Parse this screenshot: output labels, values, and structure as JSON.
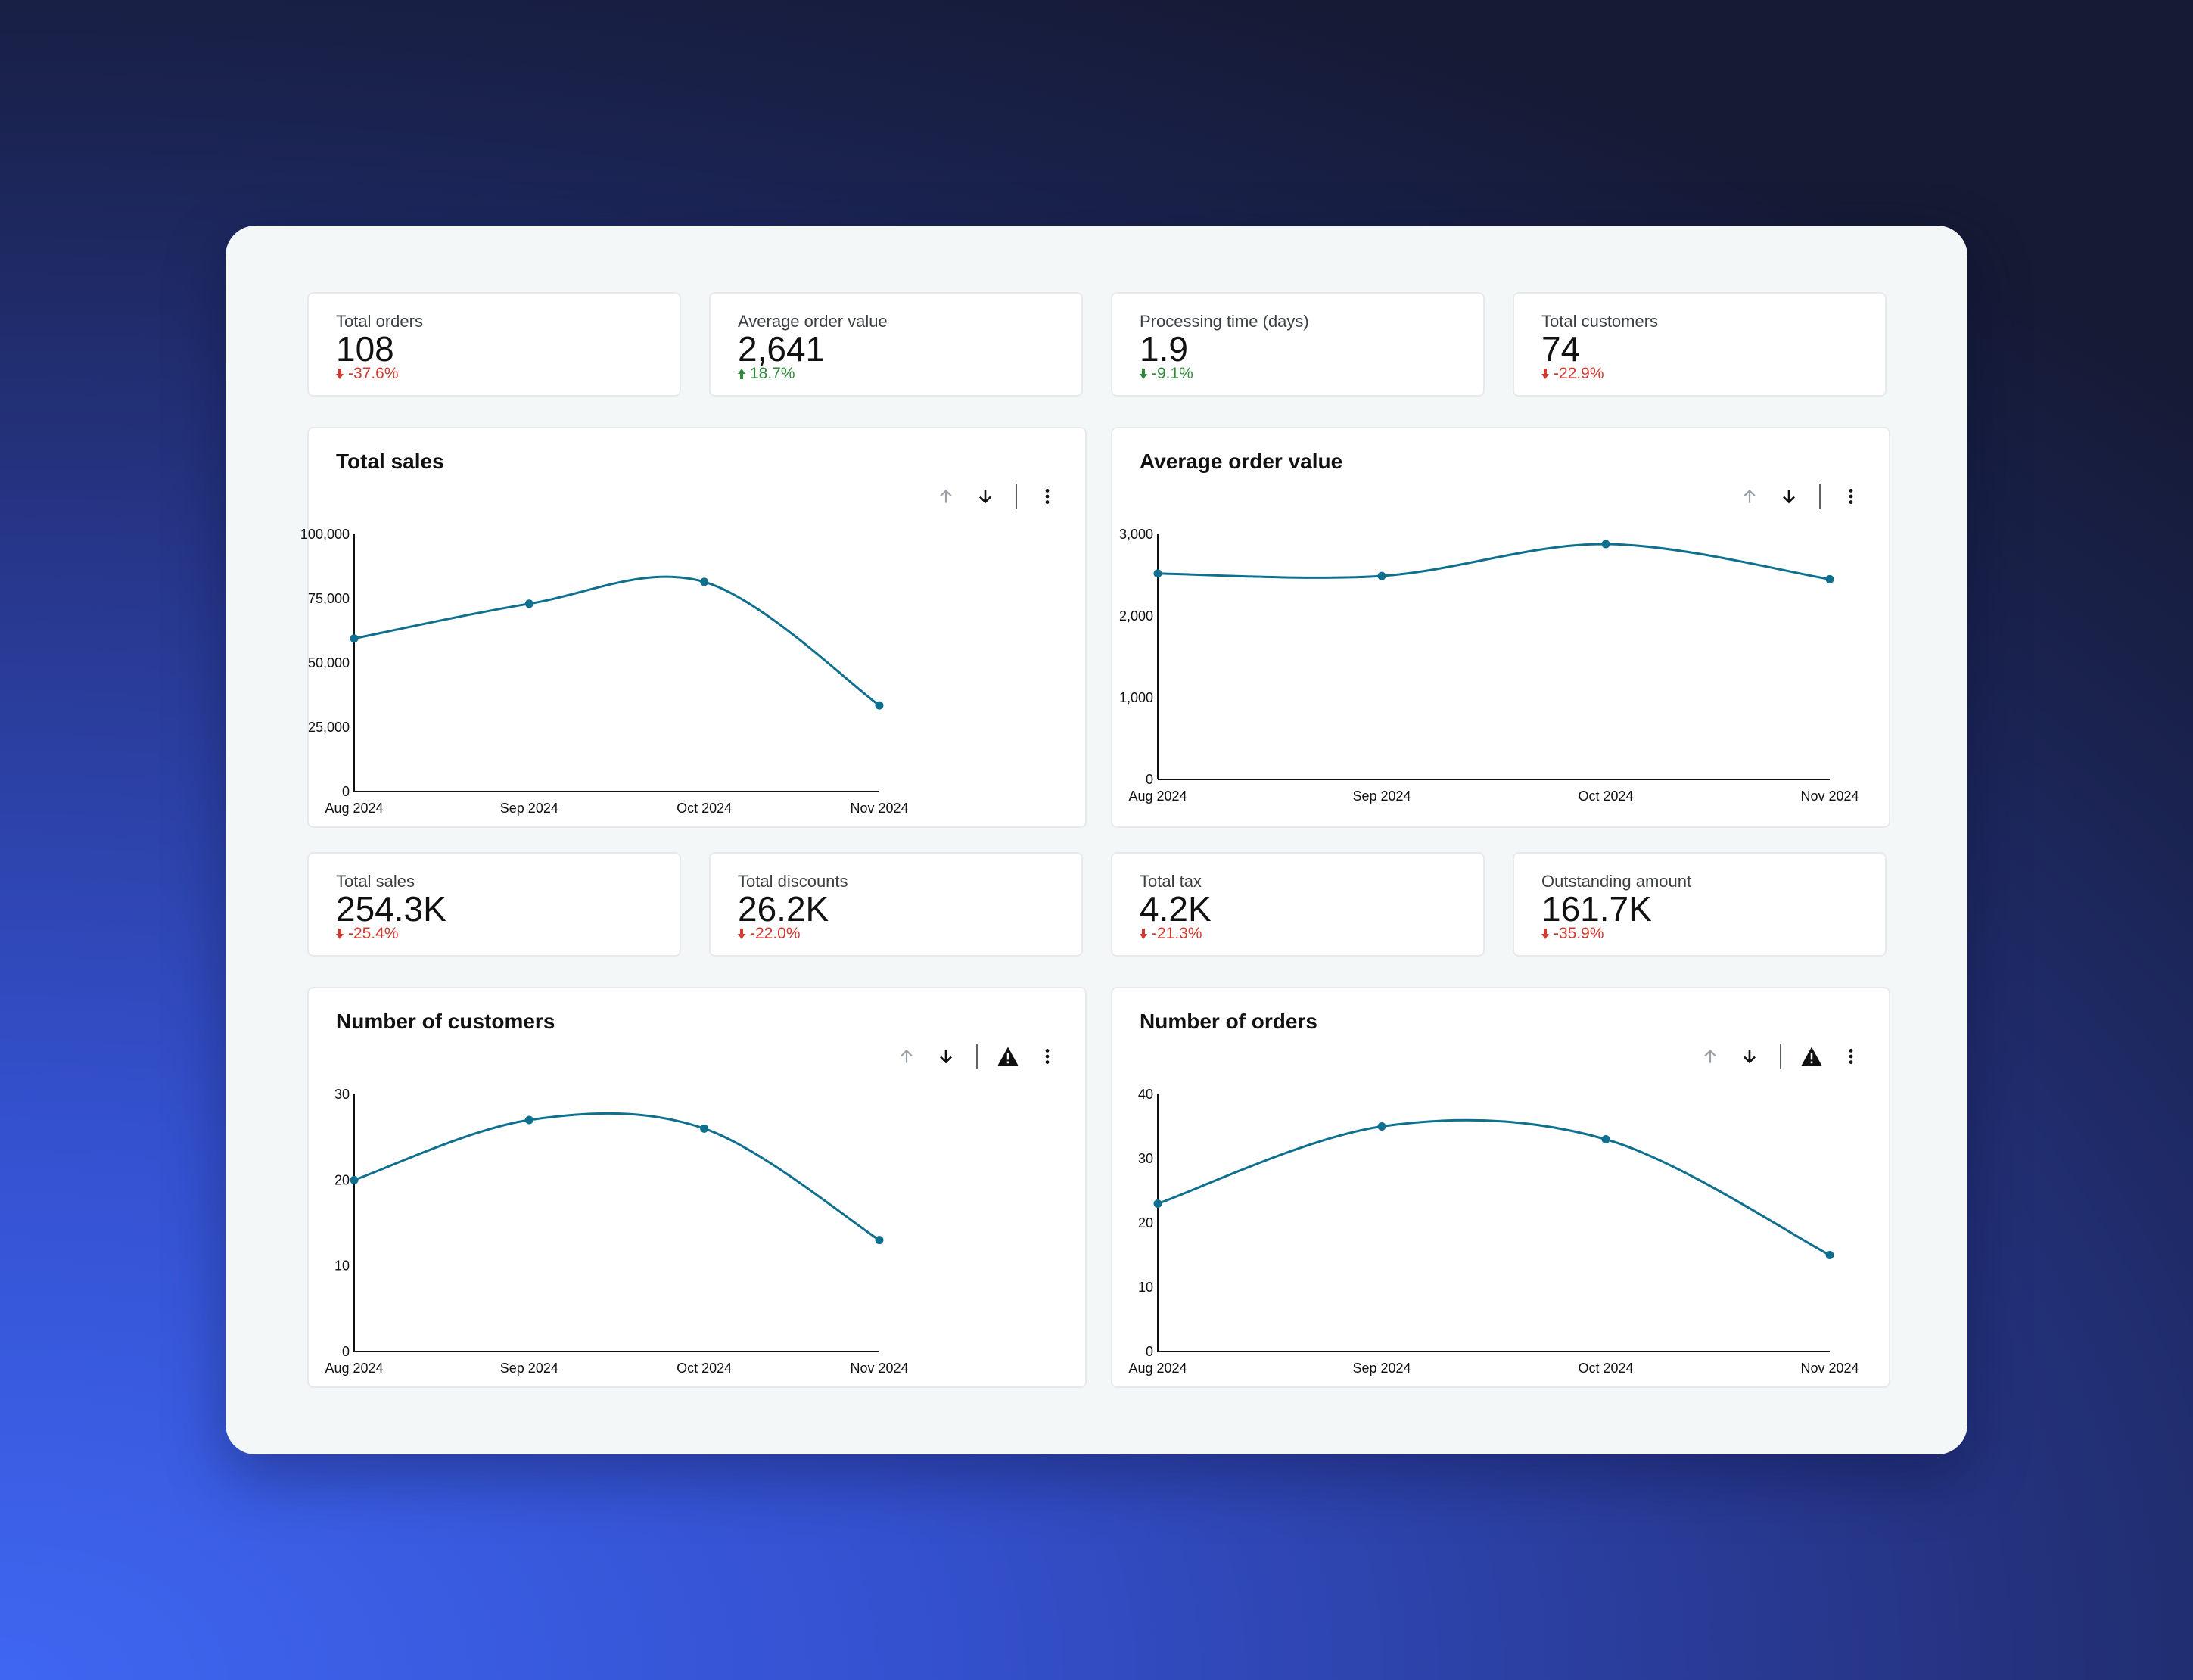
{
  "colors": {
    "line": "#0e6f8e",
    "negative": "#d03a30",
    "positive": "#2f8a3b",
    "axis": "#111111"
  },
  "kpis_top": [
    {
      "label": "Total orders",
      "value": "108",
      "delta": "-37.6%",
      "direction": "down",
      "sentiment": "negative"
    },
    {
      "label": "Average order value",
      "value": "2,641",
      "delta": "18.7%",
      "direction": "up",
      "sentiment": "positive"
    },
    {
      "label": "Processing time (days)",
      "value": "1.9",
      "delta": "-9.1%",
      "direction": "down",
      "sentiment": "positive"
    },
    {
      "label": "Total customers",
      "value": "74",
      "delta": "-22.9%",
      "direction": "down",
      "sentiment": "negative"
    }
  ],
  "kpis_mid": [
    {
      "label": "Total sales",
      "value": "254.3K",
      "delta": "-25.4%",
      "direction": "down",
      "sentiment": "negative"
    },
    {
      "label": "Total discounts",
      "value": "26.2K",
      "delta": "-22.0%",
      "direction": "down",
      "sentiment": "negative"
    },
    {
      "label": "Total tax",
      "value": "4.2K",
      "delta": "-21.3%",
      "direction": "down",
      "sentiment": "negative"
    },
    {
      "label": "Outstanding amount",
      "value": "161.7K",
      "delta": "-35.9%",
      "direction": "down",
      "sentiment": "negative"
    }
  ],
  "cards": [
    {
      "title": "Total sales",
      "icons": [
        "arrow-up-icon",
        "arrow-down-icon",
        "more-vert-icon"
      ],
      "warning": false
    },
    {
      "title": "Average order value",
      "icons": [
        "arrow-up-icon",
        "arrow-down-icon",
        "more-vert-icon"
      ],
      "warning": false
    },
    {
      "title": "Number of customers",
      "icons": [
        "arrow-up-icon",
        "arrow-down-icon",
        "warning-icon",
        "more-vert-icon"
      ],
      "warning": true
    },
    {
      "title": "Number of orders",
      "icons": [
        "arrow-up-icon",
        "arrow-down-icon",
        "warning-icon",
        "more-vert-icon"
      ],
      "warning": true
    }
  ],
  "chart_data": [
    {
      "type": "line",
      "title": "Total sales",
      "categories": [
        "Aug 2024",
        "Sep 2024",
        "Oct 2024",
        "Nov 2024"
      ],
      "series": [
        {
          "values": [
            59500,
            73000,
            81500,
            33500
          ]
        }
      ],
      "ylim": [
        0,
        100000
      ],
      "yticks": [
        0,
        25000,
        50000,
        75000,
        100000
      ],
      "ytick_labels": [
        "0",
        "25,000",
        "50,000",
        "75,000",
        "100,000"
      ],
      "smooth": true,
      "grid": false
    },
    {
      "type": "line",
      "title": "Average order value",
      "categories": [
        "Aug 2024",
        "Sep 2024",
        "Oct 2024",
        "Nov 2024"
      ],
      "series": [
        {
          "values": [
            2520,
            2490,
            2880,
            2450
          ]
        }
      ],
      "ylim": [
        0,
        3000
      ],
      "yticks": [
        0,
        1000,
        2000,
        3000
      ],
      "ytick_labels": [
        "0",
        "1,000",
        "2,000",
        "3,000"
      ],
      "smooth": true,
      "grid": false
    },
    {
      "type": "line",
      "title": "Number of customers",
      "categories": [
        "Aug 2024",
        "Sep 2024",
        "Oct 2024",
        "Nov 2024"
      ],
      "series": [
        {
          "values": [
            20,
            27,
            26,
            13
          ]
        }
      ],
      "ylim": [
        0,
        30
      ],
      "yticks": [
        0,
        10,
        20,
        30
      ],
      "ytick_labels": [
        "0",
        "10",
        "20",
        "30"
      ],
      "smooth": true,
      "grid": false
    },
    {
      "type": "line",
      "title": "Number of orders",
      "categories": [
        "Aug 2024",
        "Sep 2024",
        "Oct 2024",
        "Nov 2024"
      ],
      "series": [
        {
          "values": [
            23,
            35,
            33,
            15
          ]
        }
      ],
      "ylim": [
        0,
        40
      ],
      "yticks": [
        0,
        10,
        20,
        30,
        40
      ],
      "ytick_labels": [
        "0",
        "10",
        "20",
        "30",
        "40"
      ],
      "smooth": true,
      "grid": false
    }
  ]
}
